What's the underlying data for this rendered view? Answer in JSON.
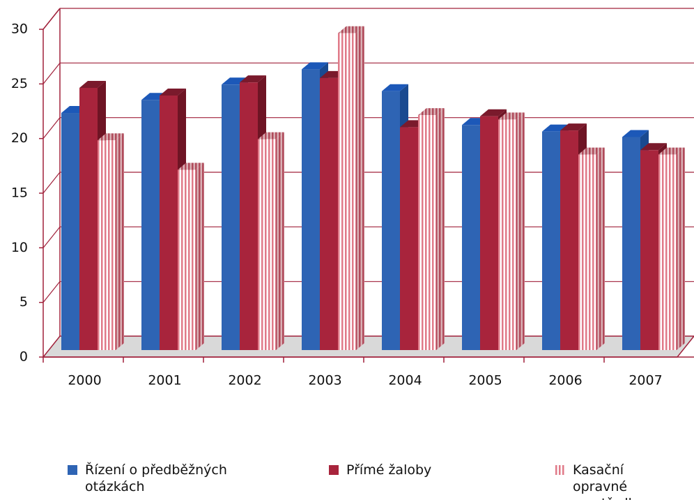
{
  "chart_data": {
    "type": "bar3d",
    "categories": [
      "2000",
      "2001",
      "2002",
      "2003",
      "2004",
      "2005",
      "2006",
      "2007"
    ],
    "series": [
      {
        "name": "Řízení o předběžných otázkách",
        "color": "#2e64b4",
        "values": [
          21.7,
          22.9,
          24.3,
          25.7,
          23.7,
          20.6,
          20.0,
          19.5
        ]
      },
      {
        "name": "Přímé žaloby",
        "color": "#a8243c",
        "values": [
          24.0,
          23.3,
          24.5,
          24.9,
          20.4,
          21.4,
          20.1,
          18.3
        ]
      },
      {
        "name": "Kasační opravné prostředky",
        "color": "#e8a0a8",
        "values": [
          19.2,
          16.5,
          19.3,
          29.0,
          21.5,
          21.1,
          17.9,
          17.9
        ]
      }
    ],
    "ylim": [
      0,
      30
    ],
    "yticks": [
      0,
      5,
      10,
      15,
      20,
      25,
      30
    ],
    "grid": true
  }
}
